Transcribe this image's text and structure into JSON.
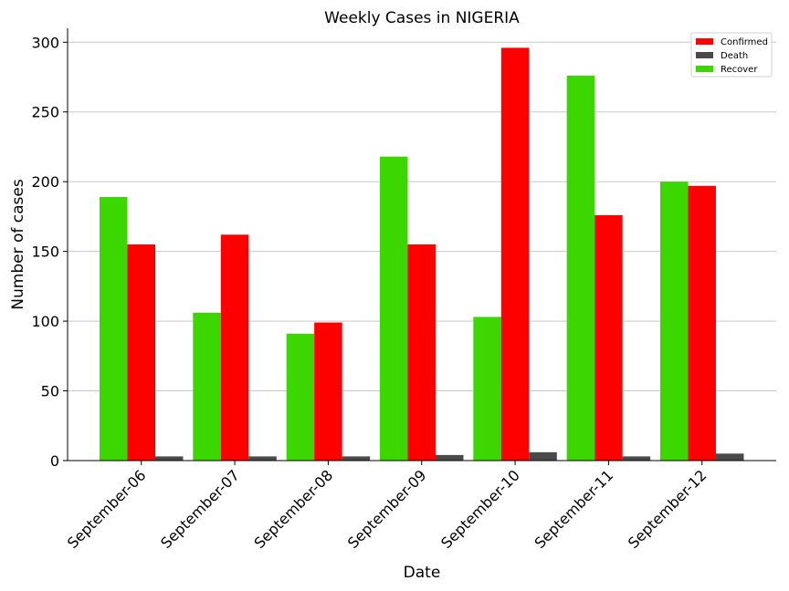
{
  "chart_data": {
    "type": "bar",
    "title": "Weekly Cases in NIGERIA",
    "xlabel": "Date",
    "ylabel": "Number of cases",
    "categories": [
      "September-06",
      "September-07",
      "September-08",
      "September-09",
      "September-10",
      "September-11",
      "September-12"
    ],
    "series": [
      {
        "name": "Recover",
        "color": "#3cd700",
        "values": [
          189,
          106,
          91,
          218,
          103,
          276,
          200
        ]
      },
      {
        "name": "Confirmed",
        "color": "#ff0000",
        "values": [
          155,
          162,
          99,
          155,
          296,
          176,
          197
        ]
      },
      {
        "name": "Death",
        "color": "#4a4a4a",
        "values": [
          3,
          3,
          3,
          4,
          6,
          3,
          5
        ]
      }
    ],
    "legend_order": [
      "Confirmed",
      "Death",
      "Recover"
    ],
    "legend_position": "top-right",
    "ylim": [
      0,
      310
    ],
    "yticks": [
      0,
      50,
      100,
      150,
      200,
      250,
      300
    ],
    "grid": "y"
  }
}
